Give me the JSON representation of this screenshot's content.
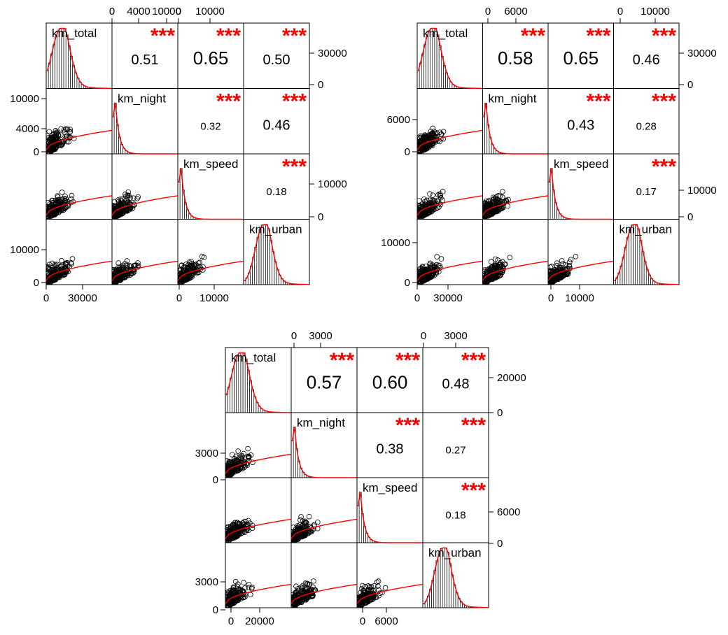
{
  "colors": {
    "frame": "#000000",
    "smooth": "#ff0000",
    "stars": "#ff0000",
    "points": "#000000"
  },
  "chart_data": [
    {
      "type": "scatter",
      "variables": [
        "km_total",
        "km_night",
        "km_speed",
        "km_urban"
      ],
      "ticks": {
        "top": [
          [
            "0",
            "4000",
            "10000"
          ],
          [
            "0",
            "10000"
          ]
        ],
        "right": [
          [
            "30000",
            "0"
          ],
          [
            "10000",
            "0"
          ]
        ],
        "left": [
          [
            "10000",
            "4000",
            "0"
          ],
          [
            "10000",
            "0"
          ]
        ],
        "bottom": [
          [
            "0",
            "30000"
          ],
          [
            "0",
            "10000"
          ]
        ]
      },
      "correlations": [
        {
          "pair": [
            "km_total",
            "km_night"
          ],
          "value": "0.51",
          "stars": "***"
        },
        {
          "pair": [
            "km_total",
            "km_speed"
          ],
          "value": "0.65",
          "stars": "***"
        },
        {
          "pair": [
            "km_total",
            "km_urban"
          ],
          "value": "0.50",
          "stars": "***"
        },
        {
          "pair": [
            "km_night",
            "km_speed"
          ],
          "value": "0.32",
          "stars": "***"
        },
        {
          "pair": [
            "km_night",
            "km_urban"
          ],
          "value": "0.46",
          "stars": "***"
        },
        {
          "pair": [
            "km_speed",
            "km_urban"
          ],
          "value": "0.18",
          "stars": "***"
        }
      ]
    },
    {
      "type": "scatter",
      "variables": [
        "km_total",
        "km_night",
        "km_speed",
        "km_urban"
      ],
      "ticks": {
        "top": [
          [
            "0",
            "6000"
          ],
          [
            "0",
            "10000"
          ]
        ],
        "right": [
          [
            "30000",
            "0"
          ],
          [
            "10000",
            "0"
          ]
        ],
        "left": [
          [
            "6000",
            "0"
          ],
          [
            "10000",
            "0"
          ]
        ],
        "bottom": [
          [
            "0",
            "30000"
          ],
          [
            "0",
            "10000"
          ]
        ]
      },
      "correlations": [
        {
          "pair": [
            "km_total",
            "km_night"
          ],
          "value": "0.58",
          "stars": "***"
        },
        {
          "pair": [
            "km_total",
            "km_speed"
          ],
          "value": "0.65",
          "stars": "***"
        },
        {
          "pair": [
            "km_total",
            "km_urban"
          ],
          "value": "0.46",
          "stars": "***"
        },
        {
          "pair": [
            "km_night",
            "km_speed"
          ],
          "value": "0.43",
          "stars": "***"
        },
        {
          "pair": [
            "km_night",
            "km_urban"
          ],
          "value": "0.28",
          "stars": "***"
        },
        {
          "pair": [
            "km_speed",
            "km_urban"
          ],
          "value": "0.17",
          "stars": "***"
        }
      ]
    },
    {
      "type": "scatter",
      "variables": [
        "km_total",
        "km_night",
        "km_speed",
        "km_urban"
      ],
      "ticks": {
        "top": [
          [
            "0",
            "3000"
          ],
          [
            "0",
            "3000"
          ]
        ],
        "right": [
          [
            "20000",
            "0"
          ],
          [
            "6000",
            "0"
          ]
        ],
        "left": [
          [
            "3000",
            "0"
          ],
          [
            "3000",
            "0"
          ]
        ],
        "bottom": [
          [
            "0",
            "20000"
          ],
          [
            "0",
            "6000"
          ]
        ]
      },
      "correlations": [
        {
          "pair": [
            "km_total",
            "km_night"
          ],
          "value": "0.57",
          "stars": "***"
        },
        {
          "pair": [
            "km_total",
            "km_speed"
          ],
          "value": "0.60",
          "stars": "***"
        },
        {
          "pair": [
            "km_total",
            "km_urban"
          ],
          "value": "0.48",
          "stars": "***"
        },
        {
          "pair": [
            "km_night",
            "km_speed"
          ],
          "value": "0.38",
          "stars": "***"
        },
        {
          "pair": [
            "km_night",
            "km_urban"
          ],
          "value": "0.27",
          "stars": "***"
        },
        {
          "pair": [
            "km_speed",
            "km_urban"
          ],
          "value": "0.18",
          "stars": "***"
        }
      ]
    }
  ]
}
